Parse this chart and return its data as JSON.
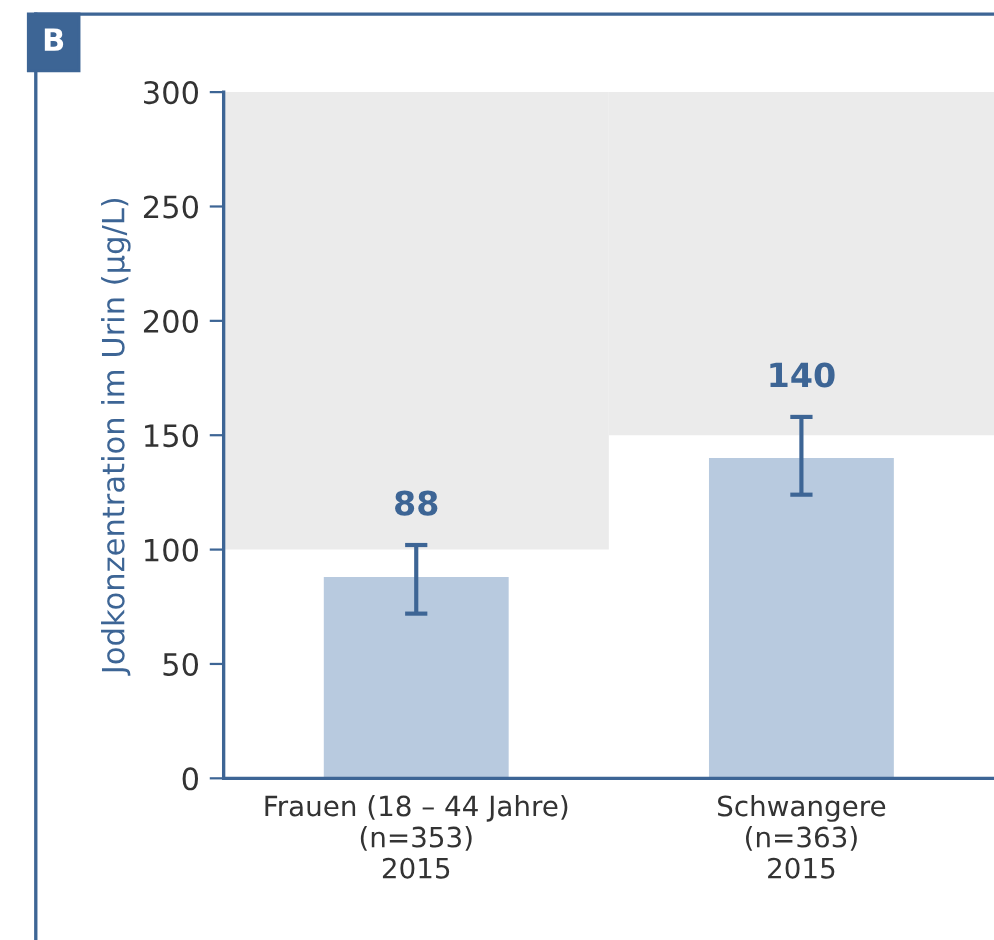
{
  "chart_data": {
    "type": "bar",
    "ylabel": "Jodkonzentration im Urin (µg/L)",
    "annotations": [
      "B"
    ],
    "categories": [
      "Frauen (18 – 44 Jahre)\n(n=353)\n2015",
      "Schwangere\n(n=363)\n2015"
    ],
    "series": [
      {
        "type": "bar",
        "color": "#ebebeb",
        "base": [
          100,
          150
        ],
        "values": [
          200,
          150
        ]
      },
      {
        "type": "bar",
        "color": "#b8cadf",
        "values": [
          88,
          140
        ],
        "errors": [
          [
            72,
            102
          ],
          [
            124,
            158
          ]
        ],
        "value_labels": [
          "88",
          "140"
        ]
      }
    ],
    "ylim": [
      0,
      300
    ],
    "yticks": [
      0,
      50,
      100,
      150,
      200,
      250,
      300
    ],
    "grid": false,
    "legend": false
  }
}
